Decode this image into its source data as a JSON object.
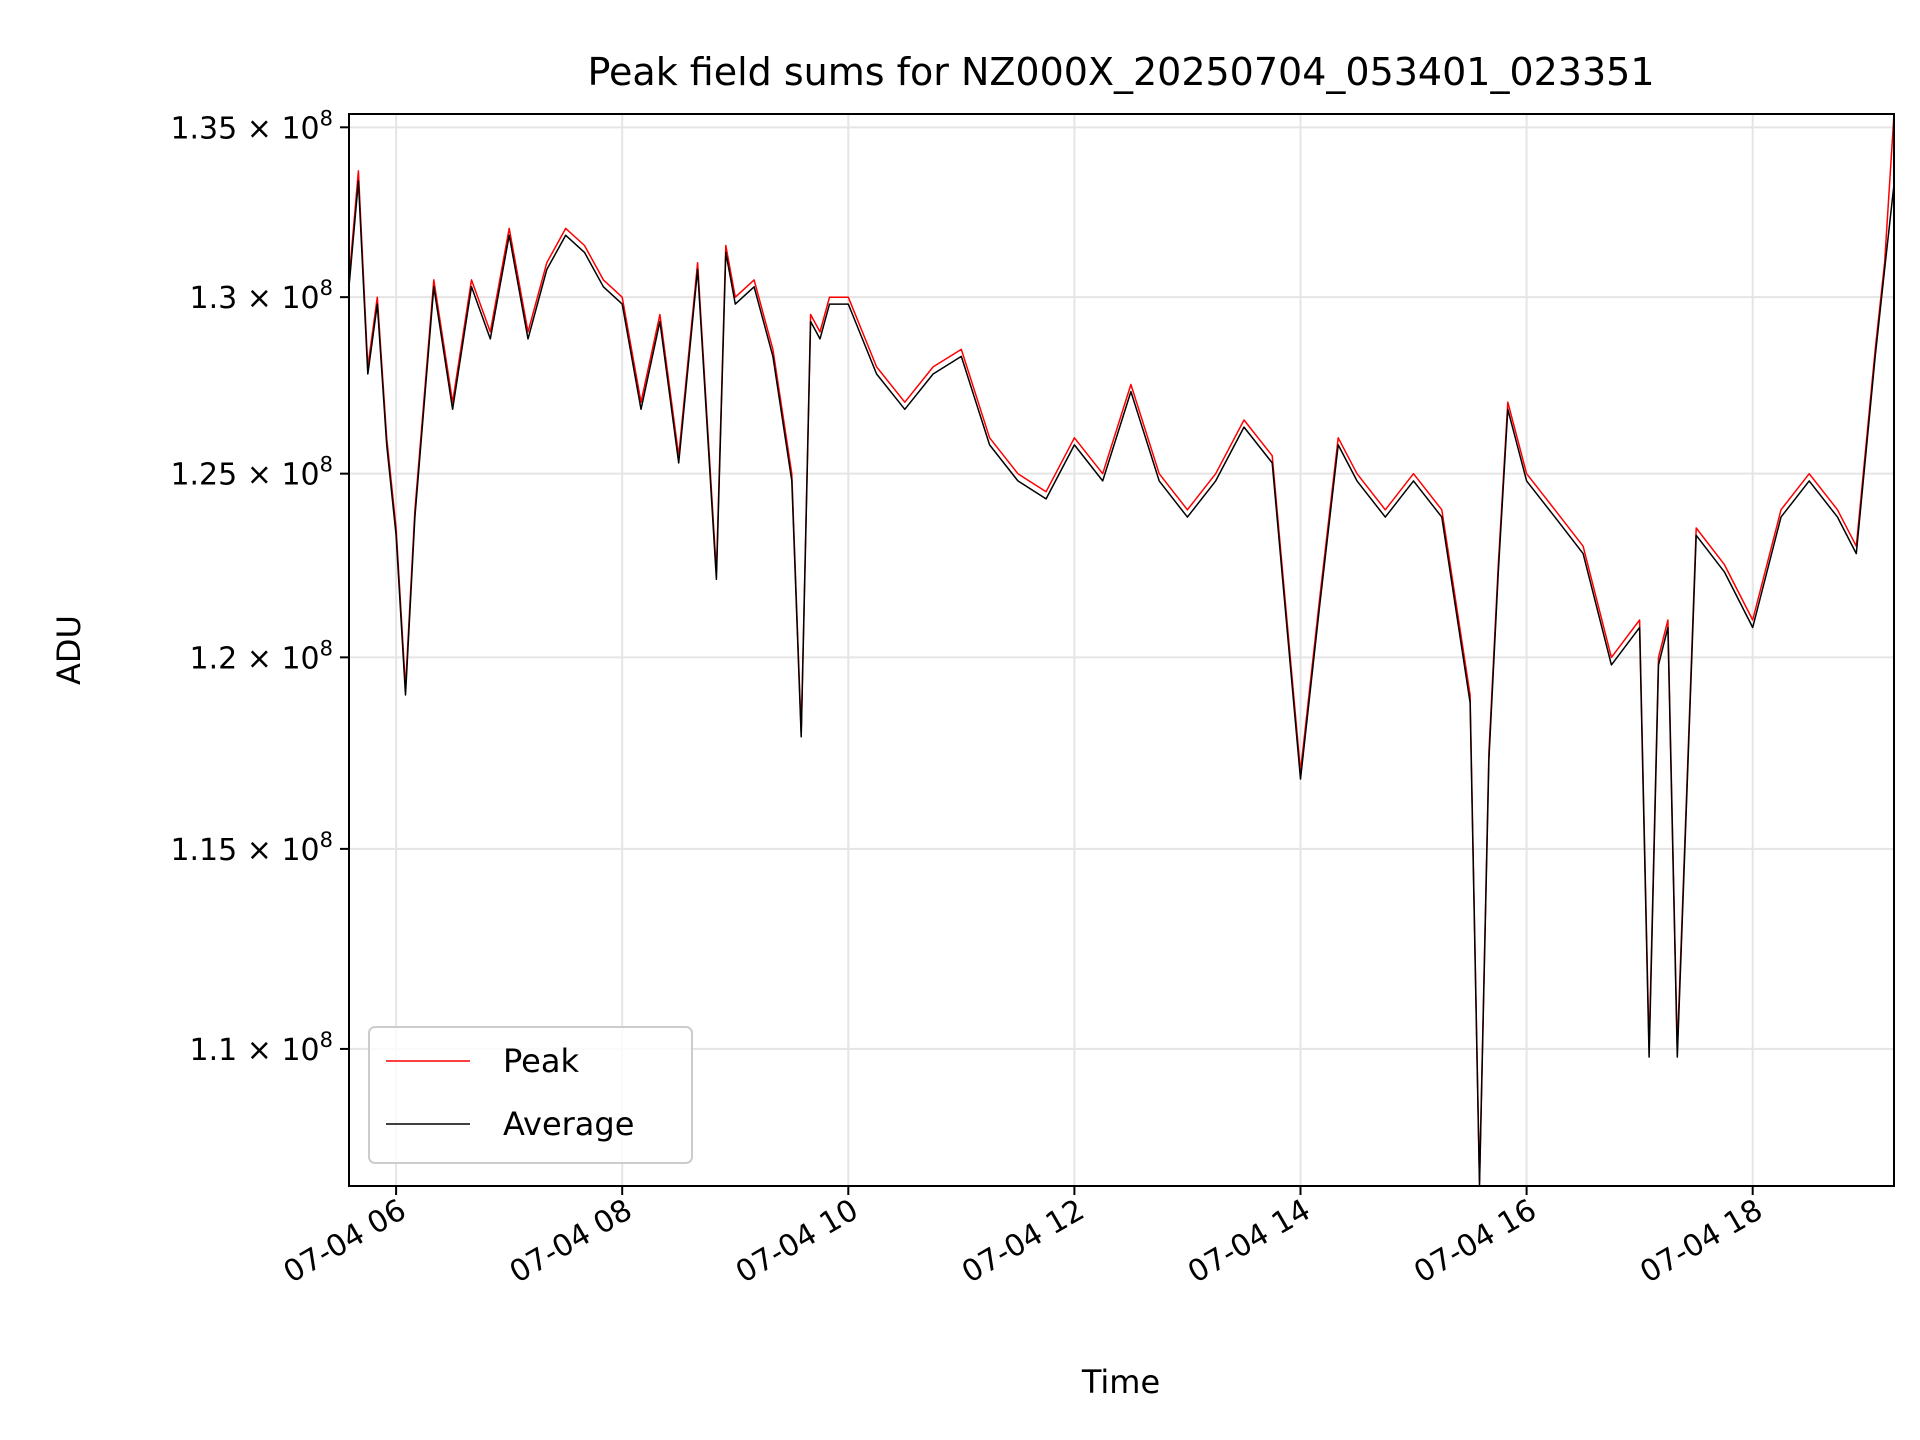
{
  "chart_data": {
    "type": "line",
    "title": "Peak field sums for NZ000X_20250704_053401_023351",
    "xlabel": "Time",
    "ylabel": "ADU",
    "y_scale": "log",
    "x_range": [
      "2025-07-04 05:35",
      "2025-07-04 19:15"
    ],
    "ylim": [
      106700000,
      135400000
    ],
    "grid": true,
    "legend_placement": "lower-left",
    "x_ticks": [
      {
        "label": "07-04 06",
        "time": "2025-07-04 06:00"
      },
      {
        "label": "07-04 08",
        "time": "2025-07-04 08:00"
      },
      {
        "label": "07-04 10",
        "time": "2025-07-04 10:00"
      },
      {
        "label": "07-04 12",
        "time": "2025-07-04 12:00"
      },
      {
        "label": "07-04 14",
        "time": "2025-07-04 14:00"
      },
      {
        "label": "07-04 16",
        "time": "2025-07-04 16:00"
      },
      {
        "label": "07-04 18",
        "time": "2025-07-04 18:00"
      }
    ],
    "y_ticks": [
      {
        "mantissa": "1.1",
        "exponent": "8",
        "value": 110000000
      },
      {
        "mantissa": "1.15",
        "exponent": "8",
        "value": 115000000
      },
      {
        "mantissa": "1.2",
        "exponent": "8",
        "value": 120000000
      },
      {
        "mantissa": "1.25",
        "exponent": "8",
        "value": 125000000
      },
      {
        "mantissa": "1.3",
        "exponent": "8",
        "value": 130000000
      },
      {
        "mantissa": "1.35",
        "exponent": "8",
        "value": 135000000
      }
    ],
    "tick_times_symbol": "×",
    "tick_base": "10",
    "series": [
      {
        "name": "Peak",
        "color": "#ff0000"
      },
      {
        "name": "Average",
        "color": "#000000"
      }
    ],
    "x": [
      "2025-07-04 05:35",
      "2025-07-04 05:40",
      "2025-07-04 05:45",
      "2025-07-04 05:50",
      "2025-07-04 05:55",
      "2025-07-04 06:00",
      "2025-07-04 06:05",
      "2025-07-04 06:10",
      "2025-07-04 06:20",
      "2025-07-04 06:30",
      "2025-07-04 06:40",
      "2025-07-04 06:50",
      "2025-07-04 07:00",
      "2025-07-04 07:10",
      "2025-07-04 07:20",
      "2025-07-04 07:30",
      "2025-07-04 07:40",
      "2025-07-04 07:50",
      "2025-07-04 08:00",
      "2025-07-04 08:10",
      "2025-07-04 08:20",
      "2025-07-04 08:30",
      "2025-07-04 08:40",
      "2025-07-04 08:50",
      "2025-07-04 08:55",
      "2025-07-04 09:00",
      "2025-07-04 09:10",
      "2025-07-04 09:20",
      "2025-07-04 09:30",
      "2025-07-04 09:35",
      "2025-07-04 09:40",
      "2025-07-04 09:45",
      "2025-07-04 09:50",
      "2025-07-04 10:00",
      "2025-07-04 10:15",
      "2025-07-04 10:30",
      "2025-07-04 10:45",
      "2025-07-04 11:00",
      "2025-07-04 11:15",
      "2025-07-04 11:30",
      "2025-07-04 11:45",
      "2025-07-04 12:00",
      "2025-07-04 12:15",
      "2025-07-04 12:30",
      "2025-07-04 12:45",
      "2025-07-04 13:00",
      "2025-07-04 13:15",
      "2025-07-04 13:30",
      "2025-07-04 13:45",
      "2025-07-04 14:00",
      "2025-07-04 14:10",
      "2025-07-04 14:20",
      "2025-07-04 14:30",
      "2025-07-04 14:45",
      "2025-07-04 15:00",
      "2025-07-04 15:15",
      "2025-07-04 15:30",
      "2025-07-04 15:35",
      "2025-07-04 15:40",
      "2025-07-04 15:45",
      "2025-07-04 15:50",
      "2025-07-04 16:00",
      "2025-07-04 16:15",
      "2025-07-04 16:30",
      "2025-07-04 16:45",
      "2025-07-04 17:00",
      "2025-07-04 17:05",
      "2025-07-04 17:10",
      "2025-07-04 17:15",
      "2025-07-04 17:20",
      "2025-07-04 17:25",
      "2025-07-04 17:30",
      "2025-07-04 17:45",
      "2025-07-04 18:00",
      "2025-07-04 18:15",
      "2025-07-04 18:30",
      "2025-07-04 18:45",
      "2025-07-04 18:55",
      "2025-07-04 19:05",
      "2025-07-04 19:10",
      "2025-07-04 19:15"
    ],
    "peak": [
      130500000,
      133700000,
      128000000,
      130000000,
      126000000,
      123500000,
      119200000,
      124000000,
      130500000,
      127000000,
      130500000,
      129000000,
      132000000,
      129000000,
      131000000,
      132000000,
      131500000,
      130500000,
      130000000,
      127000000,
      129500000,
      125500000,
      131000000,
      122300000,
      131500000,
      130000000,
      130500000,
      128500000,
      125000000,
      118000000,
      129500000,
      129000000,
      130000000,
      130000000,
      128000000,
      127000000,
      128000000,
      128500000,
      126000000,
      125000000,
      124500000,
      126000000,
      125000000,
      127500000,
      125000000,
      124000000,
      125000000,
      126500000,
      125500000,
      117000000,
      121500000,
      126000000,
      125000000,
      124000000,
      125000000,
      124000000,
      119000000,
      106800000,
      117500000,
      122500000,
      127000000,
      125000000,
      124000000,
      123000000,
      120000000,
      121000000,
      110000000,
      120000000,
      121000000,
      110000000,
      116500000,
      123500000,
      122500000,
      121000000,
      124000000,
      125000000,
      124000000,
      123000000,
      128500000,
      131000000,
      135400000
    ],
    "average": [
      130300000,
      133400000,
      127800000,
      129800000,
      125800000,
      123300000,
      119000000,
      123800000,
      130300000,
      126800000,
      130300000,
      128800000,
      131800000,
      128800000,
      130800000,
      131800000,
      131300000,
      130300000,
      129800000,
      126800000,
      129300000,
      125300000,
      130800000,
      122100000,
      131300000,
      129800000,
      130300000,
      128300000,
      124800000,
      117900000,
      129300000,
      128800000,
      129800000,
      129800000,
      127800000,
      126800000,
      127800000,
      128300000,
      125800000,
      124800000,
      124300000,
      125800000,
      124800000,
      127300000,
      124800000,
      123800000,
      124800000,
      126300000,
      125300000,
      116800000,
      121300000,
      125800000,
      124800000,
      123800000,
      124800000,
      123800000,
      118800000,
      106700000,
      117300000,
      122300000,
      126800000,
      124800000,
      123800000,
      122800000,
      119800000,
      120800000,
      109800000,
      119800000,
      120800000,
      109800000,
      116300000,
      123300000,
      122300000,
      120800000,
      123800000,
      124800000,
      123800000,
      122800000,
      128300000,
      130800000,
      133300000
    ]
  }
}
